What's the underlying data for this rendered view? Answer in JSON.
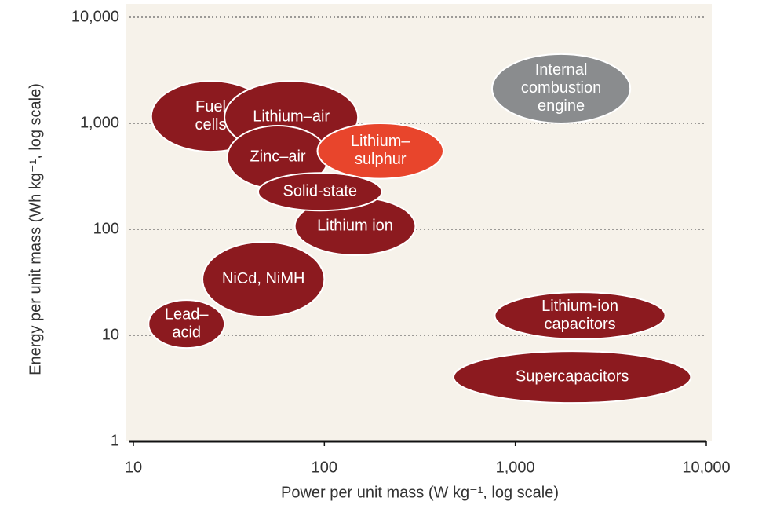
{
  "chart_data": {
    "type": "ellipse",
    "x_label": "Power per unit mass (W kg⁻¹, log scale)",
    "y_label": "Energy per unit mass (Wh kg⁻¹, log scale)",
    "x_log": true,
    "y_log": true,
    "grid": true,
    "xlim": [
      10,
      10000
    ],
    "ylim": [
      1,
      10000
    ],
    "xticks": [
      10,
      100,
      {
        "value": 1000,
        "label": "1,000"
      },
      {
        "value": 10000,
        "label": "10,000"
      }
    ],
    "yticks": [
      1,
      10,
      100,
      {
        "value": 1000,
        "label": "1,000"
      },
      {
        "value": 10000,
        "label": "10,000"
      }
    ],
    "series": [
      {
        "name": [
          "Fuel",
          "cells"
        ],
        "color": "#8c1a1f",
        "x": [
          12.4,
          52
        ],
        "y": [
          540,
          2500
        ]
      },
      {
        "name": [
          "Lithium ion"
        ],
        "color": "#8c1a1f",
        "x": [
          70,
          300
        ],
        "y": [
          57,
          200
        ]
      },
      {
        "name": [
          "NiCd, NiMH"
        ],
        "color": "#8c1a1f",
        "x": [
          23,
          100
        ],
        "y": [
          15,
          76
        ]
      },
      {
        "name": [
          "Lead–",
          "acid"
        ],
        "color": "#8c1a1f",
        "x": [
          12,
          30
        ],
        "y": [
          7.6,
          21.5
        ]
      },
      {
        "name": [
          "Lithium–air"
        ],
        "color": "#8c1a1f",
        "x": [
          30,
          150
        ],
        "y": [
          520,
          2500
        ]
      },
      {
        "name": [
          "Zinc–air"
        ],
        "color": "#8c1a1f",
        "x": [
          31,
          105
        ],
        "y": [
          240,
          950
        ]
      },
      {
        "name": [
          "Lithium–",
          "sulphur"
        ],
        "color": "#e8452c",
        "x": [
          92,
          420
        ],
        "y": [
          300,
          1000
        ]
      },
      {
        "name": [
          "Solid-state"
        ],
        "color": "#8c1a1f",
        "x": [
          45,
          200
        ],
        "y": [
          150,
          340
        ]
      },
      {
        "name": [
          "Internal",
          "combustion",
          "engine"
        ],
        "color": "#8a8c8e",
        "x": [
          755,
          4000
        ],
        "y": [
          1000,
          4500
        ]
      },
      {
        "name": [
          "Lithium-ion",
          "capacitors"
        ],
        "color": "#8c1a1f",
        "x": [
          780,
          6100
        ],
        "y": [
          9.2,
          25.5
        ]
      },
      {
        "name": [
          "Supercapacitors"
        ],
        "color": "#8c1a1f",
        "x": [
          475,
          8300
        ],
        "y": [
          2.3,
          7.1
        ]
      }
    ]
  }
}
